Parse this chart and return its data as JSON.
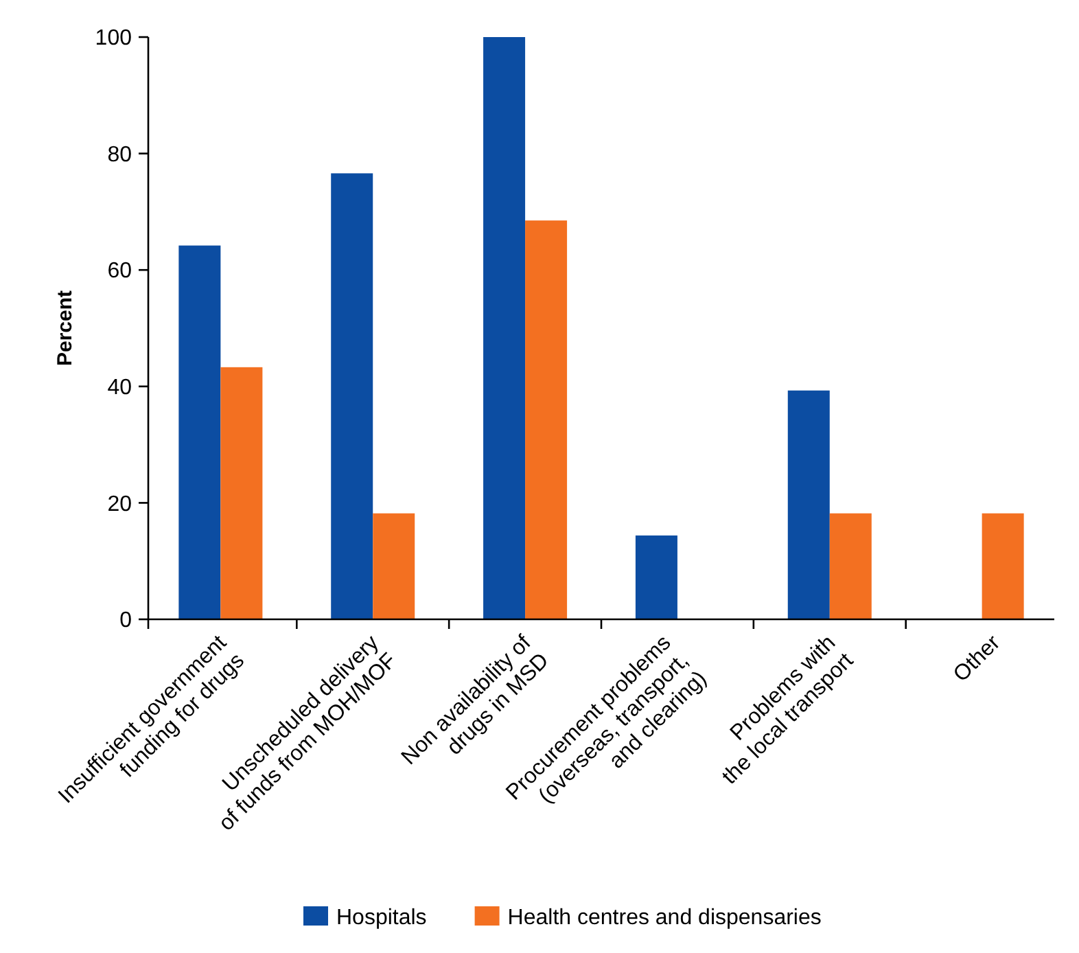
{
  "chart_data": {
    "type": "bar",
    "ylabel": "Percent",
    "categories": [
      "Insufficient government\nfunding for drugs",
      "Unscheduled delivery\nof funds from MOH/MOF",
      "Non availability of\ndrugs in MSD",
      "Procurement problems\n(overseas, transport,\nand clearing)",
      "Problems with\nthe local transport",
      "Other"
    ],
    "series": [
      {
        "name": "Hospitals",
        "color": "#0c4da2",
        "values": [
          64.2,
          76.6,
          100,
          14.4,
          39.3,
          0
        ]
      },
      {
        "name": "Health centres and dispensaries",
        "color": "#f37021",
        "values": [
          43.3,
          18.2,
          68.5,
          0,
          18.2,
          18.2
        ]
      }
    ],
    "ylim": [
      0,
      100
    ],
    "yticks": [
      0,
      20,
      40,
      60,
      80,
      100
    ],
    "grid": false,
    "legend": "bottom"
  }
}
